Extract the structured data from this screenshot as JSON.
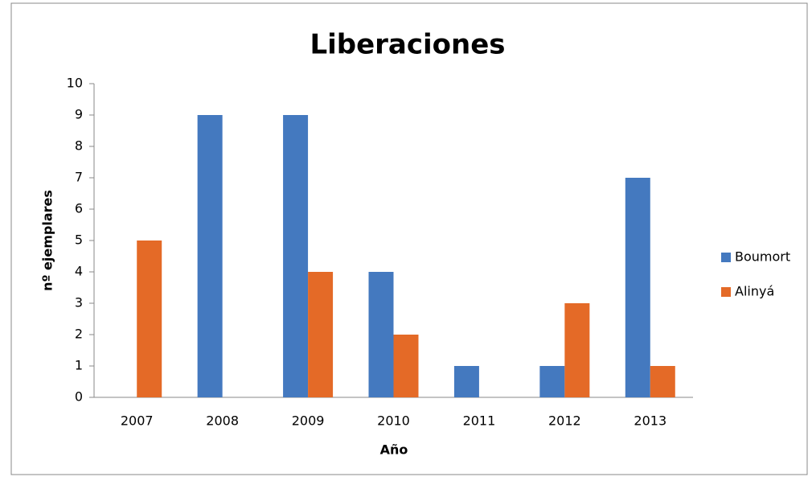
{
  "chart_data": {
    "type": "bar",
    "title": "Liberaciones",
    "x_label": "Año",
    "y_label": "nº ejemplares",
    "categories": [
      "2007",
      "2008",
      "2009",
      "2010",
      "2011",
      "2012",
      "2013"
    ],
    "series": [
      {
        "name": "Boumort",
        "color": "#4479bf",
        "values": [
          0,
          9,
          9,
          4,
          1,
          1,
          7
        ]
      },
      {
        "name": "Alinyá",
        "color": "#e46a27",
        "values": [
          5,
          0,
          4,
          2,
          0,
          3,
          1
        ]
      }
    ],
    "ylim": [
      0,
      10
    ],
    "yticks": [
      0,
      1,
      2,
      3,
      4,
      5,
      6,
      7,
      8,
      9,
      10
    ],
    "legend": "right"
  }
}
